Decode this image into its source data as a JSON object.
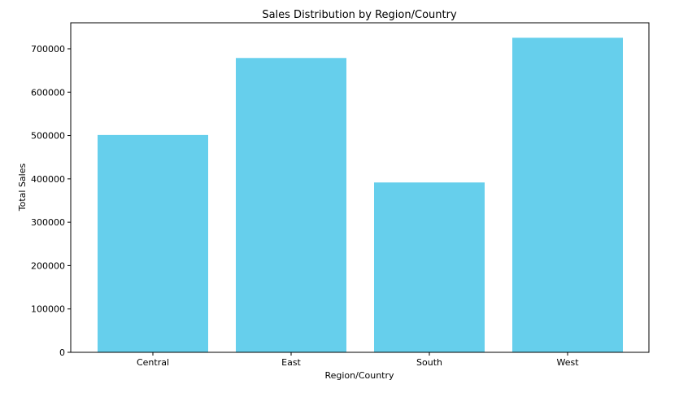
{
  "chart_data": {
    "type": "bar",
    "title": "Sales Distribution by Region/Country",
    "xlabel": "Region/Country",
    "ylabel": "Total Sales",
    "categories": [
      "Central",
      "East",
      "South",
      "West"
    ],
    "values": [
      501240,
      678781,
      391722,
      725458
    ],
    "ylim": [
      0,
      760000
    ],
    "yticks": [
      0,
      100000,
      200000,
      300000,
      400000,
      500000,
      600000,
      700000
    ],
    "ytick_labels": [
      "0",
      "100000",
      "200000",
      "300000",
      "400000",
      "500000",
      "600000",
      "700000"
    ],
    "grid": false,
    "legend": "none",
    "colors": {
      "bar": "#66cfec",
      "axis": "#000000",
      "background": "#ffffff"
    }
  }
}
